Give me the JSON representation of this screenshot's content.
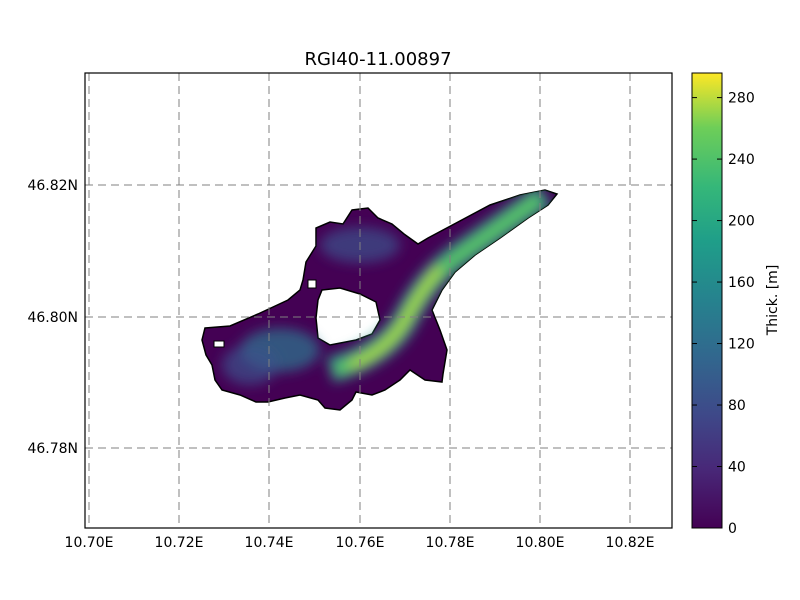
{
  "title": "RGI40-11.00897",
  "colorbar": {
    "label": "Thick. [m]",
    "ticks": [
      "0",
      "40",
      "80",
      "120",
      "160",
      "200",
      "240",
      "280"
    ],
    "min": 0,
    "max": 296,
    "colormap": "viridis"
  },
  "map": {
    "x_ticks": [
      "10.70E",
      "10.72E",
      "10.74E",
      "10.76E",
      "10.78E",
      "10.80E",
      "10.82E"
    ],
    "y_ticks": [
      "46.78N",
      "46.80N",
      "46.82N"
    ],
    "grid": "dashed gray",
    "outline_color": "#000000"
  }
}
